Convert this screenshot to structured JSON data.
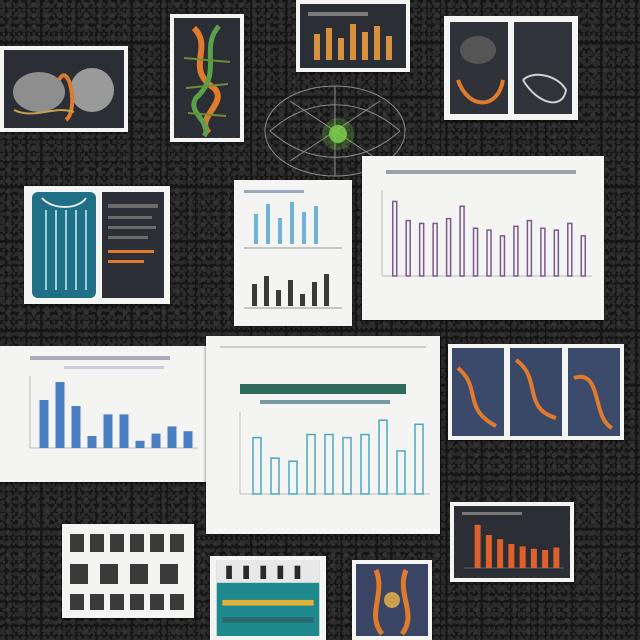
{
  "scene": {
    "background": "#161616",
    "card_color": "#f4f4f2",
    "accent_orange": "#e07a2c",
    "accent_blue": "#4a7fc4",
    "accent_teal": "#1f8a8e",
    "accent_purple": "#7a5a8e"
  },
  "chart_data": [
    {
      "type": "bar",
      "values": [
        78,
        58,
        55,
        55,
        60,
        73,
        50,
        48,
        42,
        52,
        58,
        50,
        48,
        55,
        42
      ],
      "title": "",
      "xlabel": "",
      "ylabel": ""
    },
    {
      "type": "bar",
      "values": [
        40,
        55,
        35,
        10,
        28,
        28,
        6,
        12,
        18,
        14
      ],
      "title": "",
      "xlabel": "",
      "ylabel": ""
    },
    {
      "type": "bar",
      "values": [
        55,
        35,
        32,
        58,
        58,
        55,
        58,
        72,
        42,
        68
      ],
      "title": "",
      "xlabel": "",
      "ylabel": ""
    },
    {
      "type": "bar",
      "values": [
        72,
        55,
        48,
        40,
        36,
        32,
        30,
        34
      ],
      "title": "",
      "xlabel": "",
      "ylabel": ""
    }
  ]
}
